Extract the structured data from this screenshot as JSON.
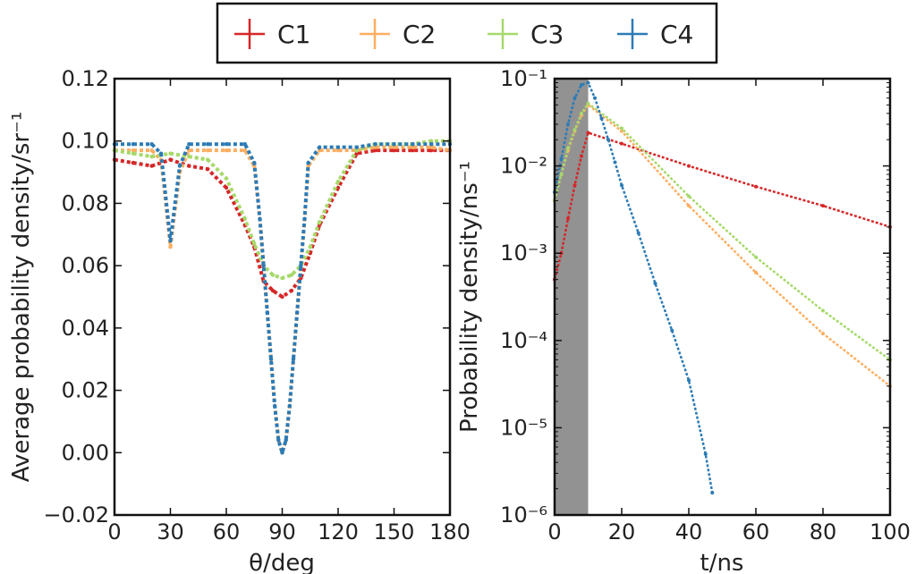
{
  "legend": {
    "entries": [
      {
        "label": "C1",
        "color": "#d62728"
      },
      {
        "label": "C2",
        "color": "#fdae61"
      },
      {
        "label": "C3",
        "color": "#a6d96a"
      },
      {
        "label": "C4",
        "color": "#2c7bb6"
      }
    ]
  },
  "chart_data": [
    {
      "type": "scatter",
      "title": "",
      "xlabel": "θ/deg",
      "ylabel": "Average probability density/sr⁻¹",
      "xlim": [
        0,
        180
      ],
      "ylim": [
        -0.02,
        0.12
      ],
      "xticks": [
        "0",
        "30",
        "60",
        "90",
        "120",
        "150",
        "180"
      ],
      "yticks": [
        "−0.02",
        "0.00",
        "0.02",
        "0.04",
        "0.06",
        "0.08",
        "0.10",
        "0.12"
      ],
      "series": [
        {
          "name": "C1",
          "color": "#d62728",
          "x": [
            0,
            10,
            20,
            30,
            40,
            50,
            60,
            70,
            75,
            80,
            85,
            90,
            95,
            100,
            105,
            110,
            120,
            130,
            140,
            150,
            160,
            170,
            180
          ],
          "y": [
            0.094,
            0.093,
            0.092,
            0.094,
            0.092,
            0.091,
            0.085,
            0.073,
            0.066,
            0.055,
            0.052,
            0.05,
            0.052,
            0.056,
            0.064,
            0.073,
            0.085,
            0.096,
            0.097,
            0.097,
            0.097,
            0.097,
            0.097
          ]
        },
        {
          "name": "C2",
          "color": "#fdae61",
          "x": [
            0,
            10,
            20,
            25,
            30,
            35,
            40,
            50,
            60,
            70,
            75,
            78,
            80,
            82,
            84,
            86,
            88,
            90,
            92,
            94,
            96,
            98,
            100,
            102,
            104,
            110,
            120,
            130,
            140,
            150,
            160,
            170,
            180
          ],
          "y": [
            0.097,
            0.097,
            0.097,
            0.094,
            0.066,
            0.09,
            0.097,
            0.097,
            0.097,
            0.097,
            0.092,
            0.075,
            0.06,
            0.045,
            0.03,
            0.015,
            0.004,
            0.0,
            0.004,
            0.015,
            0.03,
            0.045,
            0.06,
            0.075,
            0.092,
            0.097,
            0.097,
            0.097,
            0.098,
            0.098,
            0.098,
            0.098,
            0.097
          ]
        },
        {
          "name": "C3",
          "color": "#a6d96a",
          "x": [
            0,
            10,
            20,
            30,
            40,
            50,
            60,
            70,
            75,
            80,
            85,
            90,
            95,
            100,
            105,
            110,
            120,
            130,
            140,
            150,
            160,
            170,
            180
          ],
          "y": [
            0.097,
            0.096,
            0.095,
            0.096,
            0.095,
            0.094,
            0.088,
            0.075,
            0.067,
            0.06,
            0.057,
            0.056,
            0.057,
            0.06,
            0.066,
            0.074,
            0.087,
            0.097,
            0.099,
            0.099,
            0.099,
            0.1,
            0.1
          ]
        },
        {
          "name": "C4",
          "color": "#2c7bb6",
          "x": [
            0,
            10,
            20,
            25,
            30,
            35,
            40,
            50,
            60,
            70,
            75,
            78,
            80,
            82,
            84,
            86,
            88,
            90,
            92,
            94,
            96,
            98,
            100,
            102,
            104,
            110,
            120,
            130,
            140,
            150,
            160,
            170,
            180
          ],
          "y": [
            0.099,
            0.099,
            0.099,
            0.096,
            0.068,
            0.092,
            0.099,
            0.099,
            0.099,
            0.099,
            0.093,
            0.075,
            0.06,
            0.045,
            0.03,
            0.015,
            0.004,
            0.0,
            0.004,
            0.015,
            0.03,
            0.045,
            0.06,
            0.075,
            0.093,
            0.098,
            0.098,
            0.098,
            0.099,
            0.099,
            0.099,
            0.099,
            0.099
          ]
        }
      ]
    },
    {
      "type": "scatter",
      "title": "",
      "xlabel": "t/ns",
      "ylabel": "Probability density/ns⁻¹",
      "yscale": "log",
      "xlim": [
        0,
        100
      ],
      "ylim": [
        1e-06,
        0.1
      ],
      "xticks": [
        "0",
        "20",
        "40",
        "60",
        "80",
        "100"
      ],
      "yticks": [
        "10⁻⁶",
        "10⁻⁵",
        "10⁻⁴",
        "10⁻³",
        "10⁻²",
        "10⁻¹"
      ],
      "shaded_region_x": [
        0,
        10
      ],
      "series": [
        {
          "name": "C1",
          "color": "#d62728",
          "x": [
            0,
            2,
            4,
            6,
            8,
            10,
            20,
            40,
            60,
            80,
            100
          ],
          "y": [
            0.0005,
            0.001,
            0.0025,
            0.006,
            0.013,
            0.024,
            0.018,
            0.01,
            0.0058,
            0.0035,
            0.002
          ]
        },
        {
          "name": "C2",
          "color": "#fdae61",
          "x": [
            0,
            2,
            4,
            6,
            8,
            10,
            20,
            40,
            60,
            80,
            100
          ],
          "y": [
            0.004,
            0.008,
            0.015,
            0.025,
            0.038,
            0.05,
            0.025,
            0.0035,
            0.0006,
            0.00012,
            3e-05
          ]
        },
        {
          "name": "C3",
          "color": "#a6d96a",
          "x": [
            0,
            2,
            4,
            6,
            8,
            10,
            20,
            40,
            60,
            80,
            100
          ],
          "y": [
            0.004,
            0.008,
            0.016,
            0.026,
            0.04,
            0.052,
            0.027,
            0.0045,
            0.0009,
            0.00022,
            6e-05
          ]
        },
        {
          "name": "C4",
          "color": "#2c7bb6",
          "x": [
            0,
            2,
            4,
            6,
            8,
            10,
            12,
            14,
            16,
            18,
            20,
            25,
            30,
            35,
            40,
            45,
            47
          ],
          "y": [
            0.005,
            0.012,
            0.03,
            0.06,
            0.085,
            0.09,
            0.06,
            0.035,
            0.02,
            0.011,
            0.006,
            0.0017,
            0.00045,
            0.00013,
            3.5e-05,
            5e-06,
            1.8e-06
          ]
        }
      ]
    }
  ]
}
